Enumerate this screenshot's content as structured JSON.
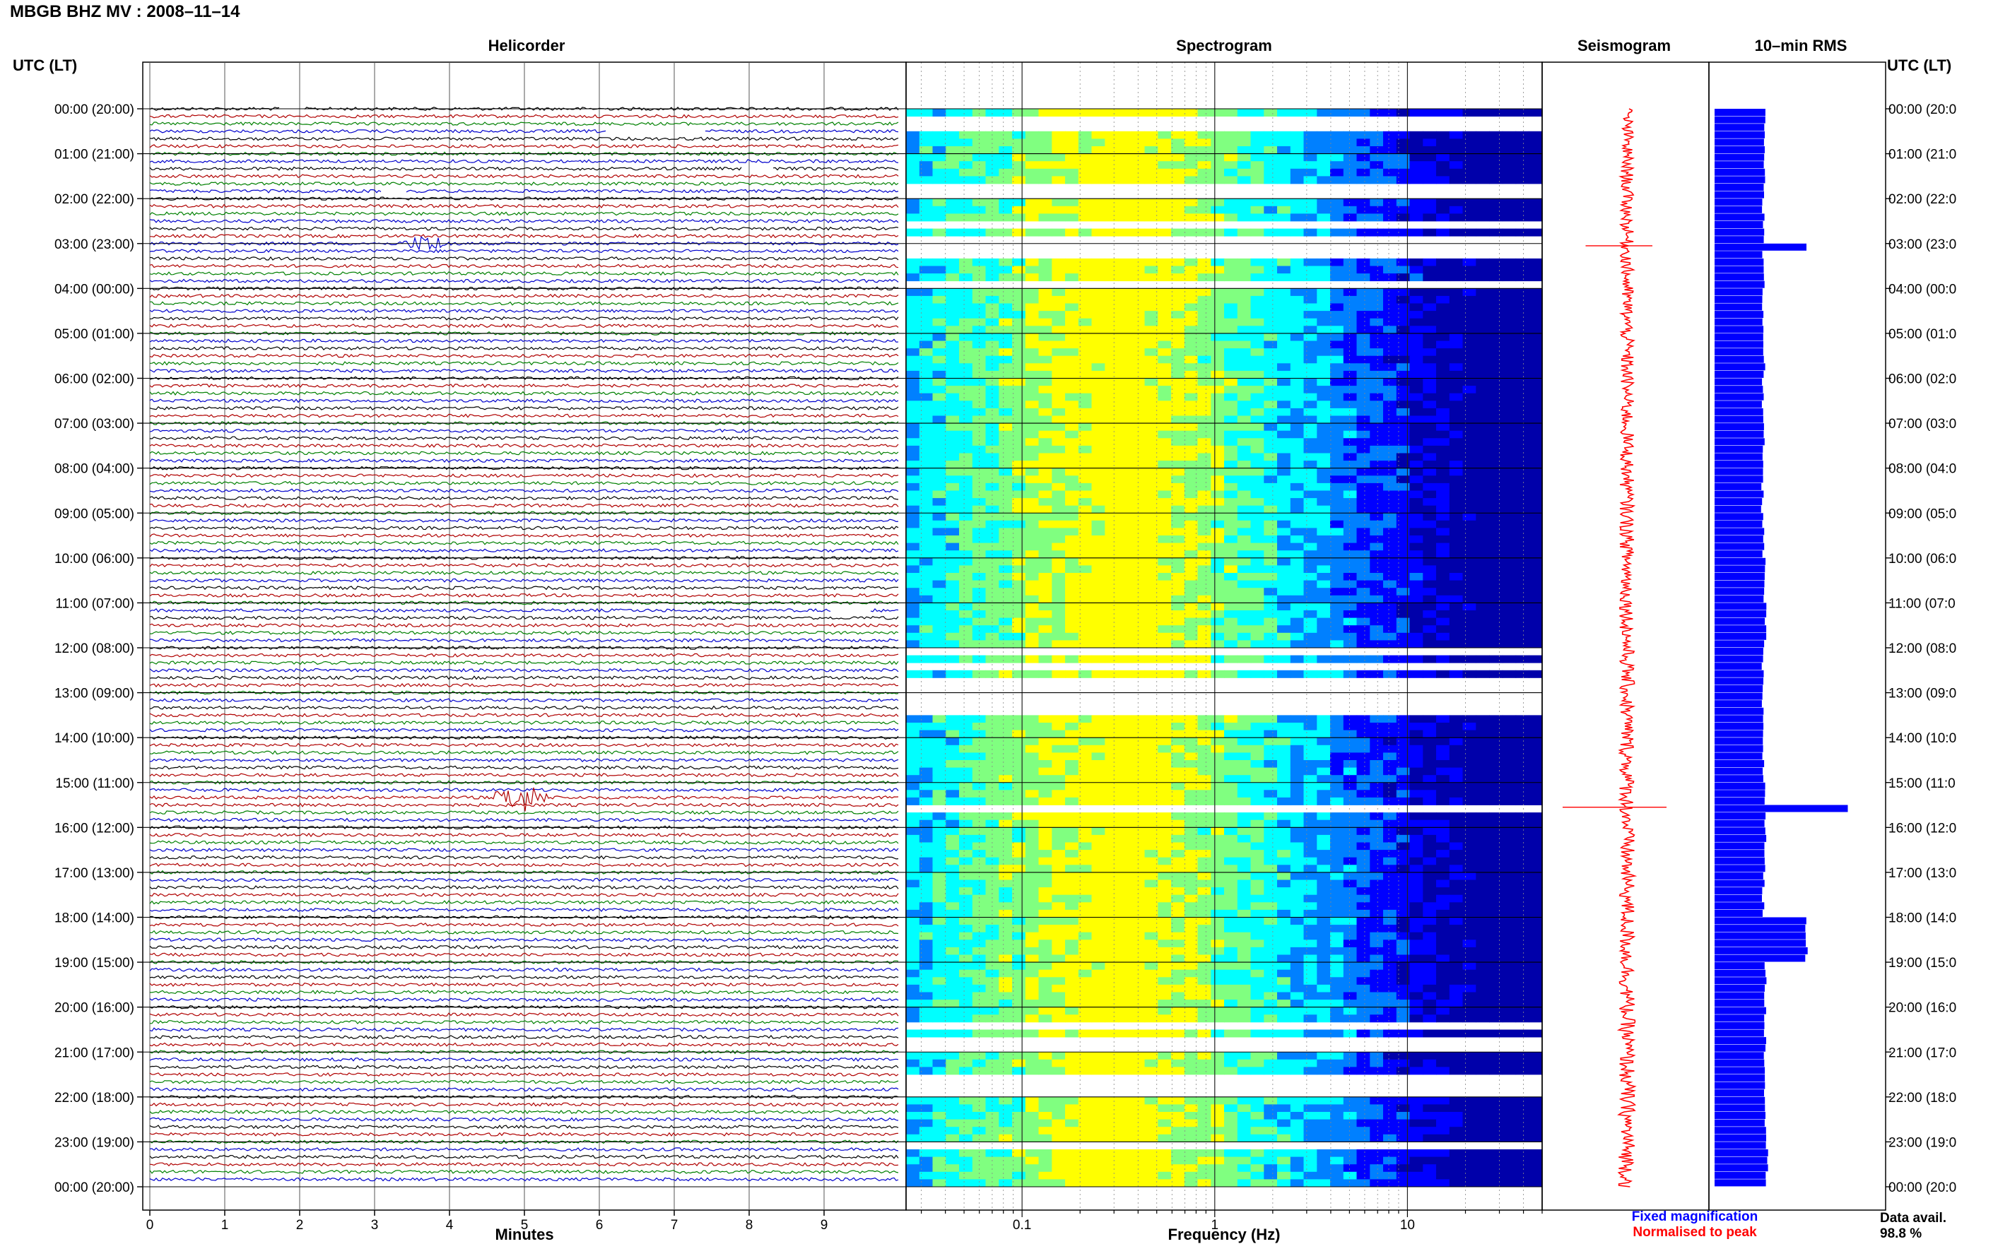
{
  "header": {
    "title": "MBGB BHZ MV : 2008–11–14",
    "left_axis_label": "UTC (LT)",
    "right_axis_label": "UTC (LT)"
  },
  "panels": {
    "helicorder": "Helicorder",
    "spectrogram": "Spectrogram",
    "seismogram": "Seismogram",
    "rms": "10–min RMS"
  },
  "x_labels": {
    "helicorder": "Minutes",
    "spectrogram": "Frequency (Hz)"
  },
  "legend": {
    "fixed": "Fixed magnification",
    "normalised": "Normalised to peak",
    "fixed_color": "#0000ff",
    "normalised_color": "#ff0000"
  },
  "availability": {
    "label": "Data avail.",
    "value": "98.8 %"
  },
  "row_labels": [
    "00:00 (20:00)",
    "01:00 (21:00)",
    "02:00 (22:00)",
    "03:00 (23:00)",
    "04:00 (00:00)",
    "05:00 (01:00)",
    "06:00 (02:00)",
    "07:00 (03:00)",
    "08:00 (04:00)",
    "09:00 (05:00)",
    "10:00 (06:00)",
    "11:00 (07:00)",
    "12:00 (08:00)",
    "13:00 (09:00)",
    "14:00 (10:00)",
    "15:00 (11:00)",
    "16:00 (12:00)",
    "17:00 (13:00)",
    "18:00 (14:00)",
    "19:00 (15:00)",
    "20:00 (16:00)",
    "21:00 (17:00)",
    "22:00 (18:00)",
    "23:00 (19:00)",
    "00:00 (20:00)"
  ],
  "right_row_labels": [
    "00:00 (20:0",
    "01:00 (21:0",
    "02:00 (22:0",
    "03:00 (23:0",
    "04:00 (00:0",
    "05:00 (01:0",
    "06:00 (02:0",
    "07:00 (03:0",
    "08:00 (04:0",
    "09:00 (05:0",
    "10:00 (06:0",
    "11:00 (07:0",
    "12:00 (08:0",
    "13:00 (09:0",
    "14:00 (10:0",
    "15:00 (11:0",
    "16:00 (12:0",
    "17:00 (13:0",
    "18:00 (14:0",
    "19:00 (15:0",
    "20:00 (16:0",
    "21:00 (17:0",
    "22:00 (18:0",
    "23:00 (19:0",
    "00:00 (20:0"
  ],
  "chart_data": [
    {
      "type": "line",
      "panel": "helicorder",
      "xlabel": "Minutes",
      "x_ticks": [
        "0",
        "1",
        "2",
        "3",
        "4",
        "5",
        "6",
        "7",
        "8",
        "9"
      ],
      "xlim": [
        0,
        10
      ],
      "rows_per_hour": 6,
      "trace_colors": [
        "#000000",
        "#b00000",
        "#008000",
        "#0000cc"
      ],
      "events": [
        {
          "row": 18,
          "minute_start": 3.3,
          "minute_end": 4.1,
          "amplitude": 3.0,
          "color": "#0000cc"
        },
        {
          "row": 92,
          "minute_start": 4.5,
          "minute_end": 5.4,
          "amplitude": 5.5,
          "color": "#b00000"
        }
      ],
      "gaps": [
        {
          "row": 0,
          "minute_start": 1.75,
          "minute_end": 2.05
        },
        {
          "row": 3,
          "minute_start": 6.1,
          "minute_end": 7.4
        },
        {
          "row": 8,
          "minute_start": 7.9,
          "minute_end": 8.3
        },
        {
          "row": 11,
          "minute_start": 3.1,
          "minute_end": 3.4
        },
        {
          "row": 67,
          "minute_start": 9.1,
          "minute_end": 9.6
        }
      ]
    },
    {
      "type": "heatmap",
      "panel": "spectrogram",
      "xlabel": "Frequency (Hz)",
      "x_scale": "log",
      "xlim": [
        0.025,
        50
      ],
      "x_ticks": [
        "0.1",
        "1",
        "10"
      ],
      "colormap": [
        "#0000aa",
        "#0000ff",
        "#0080ff",
        "#00ffff",
        "#80ff80",
        "#ffff00"
      ],
      "peak_frequency_hz": 0.35,
      "gap_rows": [
        1,
        2,
        10,
        11,
        15,
        17,
        18,
        19,
        23,
        72,
        74,
        76,
        77,
        78,
        79,
        80,
        93,
        122,
        124,
        125,
        129,
        130,
        131,
        138
      ]
    },
    {
      "type": "line",
      "panel": "seismogram",
      "orientation": "vertical",
      "spikes": [
        {
          "hour": 3.05,
          "amplitude": 4.5
        },
        {
          "hour": 15.55,
          "amplitude": 7.0
        }
      ]
    },
    {
      "type": "bar",
      "panel": "rms",
      "orientation": "horizontal",
      "bins_per_hour": 6,
      "values_relative": [
        0.54,
        0.54,
        0.53,
        0.53,
        0.53,
        0.54,
        0.52,
        0.53,
        0.52,
        0.53,
        0.54,
        0.55,
        0.52,
        0.52,
        0.53,
        0.55,
        0.55,
        0.53,
        1.0,
        0.55,
        0.55,
        0.55,
        0.56,
        0.57
      ],
      "peaks": [
        {
          "hour": 3.0,
          "value": 1.0
        },
        {
          "hour": 15.5,
          "value": 1.45
        }
      ]
    }
  ]
}
